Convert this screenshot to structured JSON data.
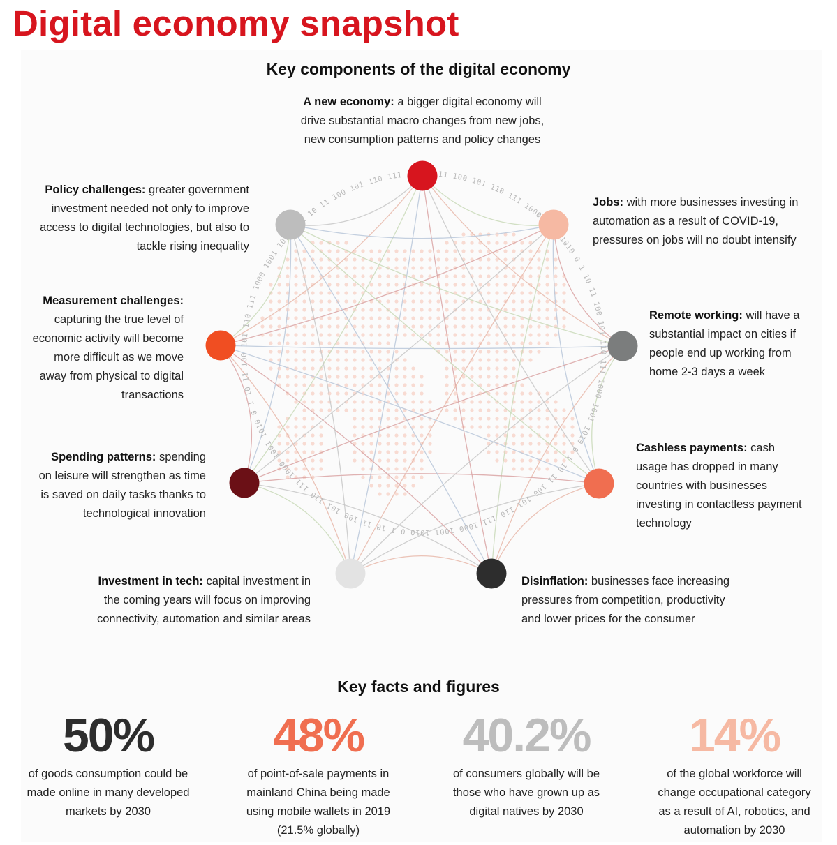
{
  "title": "Digital economy snapshot",
  "diagram": {
    "heading": "Key components of the digital economy",
    "ring_text": "10 11 100 101 110 111 1000 1001 1010 0 1 10 11 100 101 110 111 1000 1001 1010 0 1 10 11 100 101 110 111 1000 1001 1010 0 1 10 11 100 101 110 111 1000 1001 1010 0 1 10 11 100 101 110 111 1000 1001 1010 0 1 10 11 100 101 110 111 1000 1001 1010 0 1 10 11 100 101 110 111 1000 1001",
    "nodes": [
      {
        "key": "new-economy",
        "color": "#d7151e",
        "bold": "A new economy:",
        "lines": [
          " a bigger digital economy will",
          "drive substantial macro changes from new jobs,",
          "new consumption patterns and policy changes"
        ]
      },
      {
        "key": "jobs",
        "color": "#f6b9a3",
        "bold": "Jobs:",
        "lines": [
          " with more businesses investing in",
          "automation as a result of COVID-19,",
          "pressures on jobs will no doubt intensify"
        ]
      },
      {
        "key": "remote-working",
        "color": "#7b7d7d",
        "bold": "Remote working:",
        "lines": [
          " will have a",
          "substantial impact on cities if",
          "people end up working from",
          "home 2-3 days a week"
        ]
      },
      {
        "key": "cashless-payments",
        "color": "#f06e50",
        "bold": "Cashless payments:",
        "lines": [
          " cash",
          "usage has dropped in many",
          "countries with businesses",
          "investing in contactless payment",
          "technology"
        ]
      },
      {
        "key": "disinflation",
        "color": "#2d2d2d",
        "bold": "Disinflation:",
        "lines": [
          " businesses face increasing",
          "pressures from competition, productivity",
          "and lower prices for the consumer"
        ]
      },
      {
        "key": "investment-in-tech",
        "color": "#e3e3e3",
        "bold": "Investment in tech:",
        "lines": [
          " capital investment in",
          "the coming years will focus on improving",
          "connectivity, automation and similar areas"
        ]
      },
      {
        "key": "spending-patterns",
        "color": "#6b1016",
        "bold": "Spending patterns:",
        "lines": [
          " spending",
          "on leisure will strengthen as time",
          "is saved on daily tasks thanks to",
          "technological innovation"
        ]
      },
      {
        "key": "measurement-challenges",
        "color": "#f04e22",
        "bold": "Measurement challenges:",
        "lines": [
          "capturing the true level of",
          "economic activity will become",
          "more difficult as we move",
          "away from physical to digital",
          "transactions"
        ]
      },
      {
        "key": "policy-challenges",
        "color": "#bdbdbd",
        "bold": "Policy challenges:",
        "lines": [
          " greater government",
          "investment needed not only to improve",
          "access to digital technologies, but also to",
          "tackle rising inequality"
        ]
      }
    ]
  },
  "facts": {
    "heading": "Key facts and figures",
    "items": [
      {
        "value": "50%",
        "color": "#2d2d2d",
        "lines": [
          "of goods consumption could be",
          "made online in many developed",
          "markets by 2030"
        ]
      },
      {
        "value": "48%",
        "color": "#f06e50",
        "lines": [
          "of point-of-sale payments in",
          "mainland China being made",
          "using mobile wallets in 2019",
          "(21.5% globally)"
        ]
      },
      {
        "value": "40.2%",
        "color": "#bdbdbd",
        "lines": [
          "of consumers globally will be",
          "those who have grown up as",
          "digital natives by 2030"
        ]
      },
      {
        "value": "14%",
        "color": "#f6b9a3",
        "lines": [
          "of the global workforce will",
          "change occupational category",
          "as a result of AI, robotics, and",
          "automation by 2030"
        ]
      }
    ]
  }
}
